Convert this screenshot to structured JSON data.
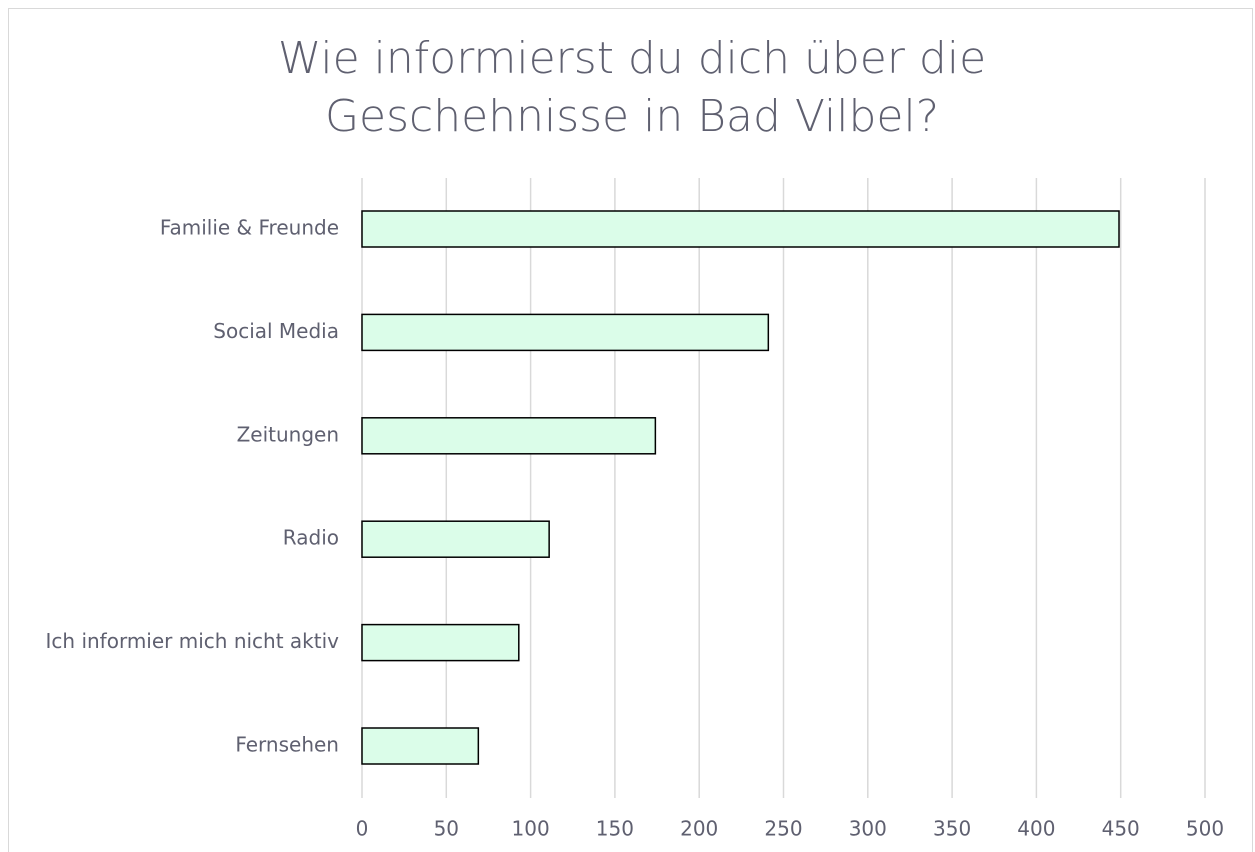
{
  "chart_data": {
    "type": "hbar",
    "title": "Wie informierst du dich über die Geschehnisse in Bad Vilbel?",
    "categories": [
      "Familie & Freunde",
      "Social Media",
      "Zeitungen",
      "Radio",
      "Ich informier mich nicht aktiv",
      "Fernsehen"
    ],
    "values": [
      449,
      241,
      174,
      111,
      93,
      69
    ],
    "color": "#dbfde9",
    "xlim": [
      0,
      500
    ],
    "xticks": [
      0,
      50,
      100,
      150,
      200,
      250,
      300,
      350,
      400,
      450,
      500
    ],
    "grid": true
  }
}
